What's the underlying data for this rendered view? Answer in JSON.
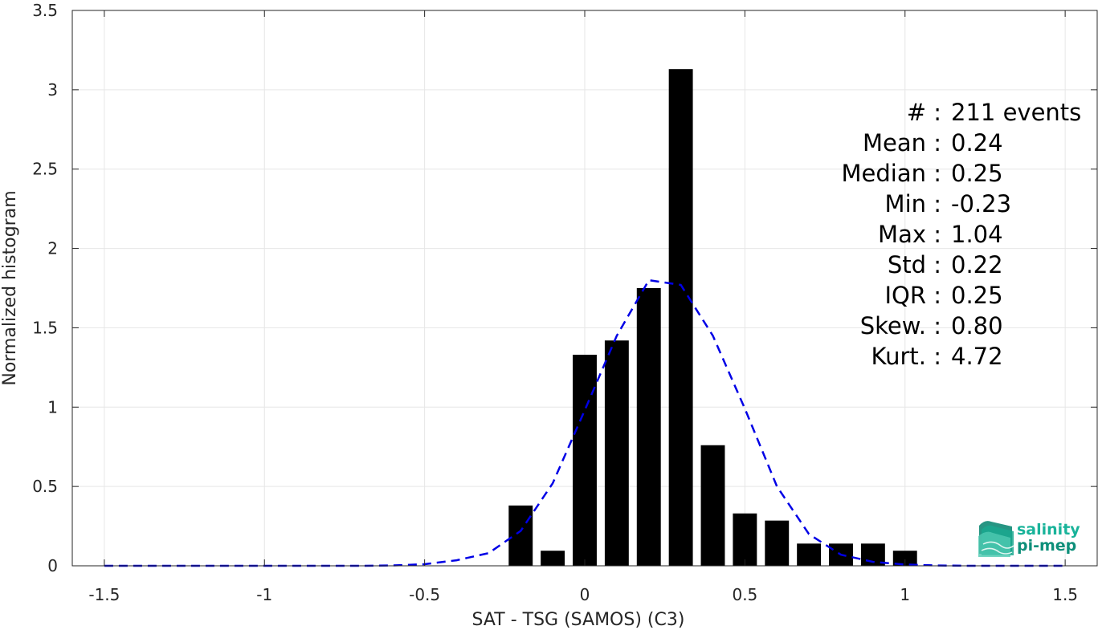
{
  "chart_data": {
    "type": "bar",
    "xlabel": "SAT - TSG (SAMOS) (C3)",
    "ylabel": "Normalized histogram",
    "xlim": [
      -1.6,
      1.6
    ],
    "ylim": [
      0,
      3.5
    ],
    "xticks": [
      -1.5,
      -1,
      -0.5,
      0,
      0.5,
      1,
      1.5
    ],
    "xtick_labels": [
      "-1.5",
      "-1",
      "-0.5",
      "0",
      "0.5",
      "1",
      "1.5"
    ],
    "yticks": [
      0,
      0.5,
      1,
      1.5,
      2,
      2.5,
      3,
      3.5
    ],
    "ytick_labels": [
      "0",
      "0.5",
      "1",
      "1.5",
      "2",
      "2.5",
      "3",
      "3.5"
    ],
    "grid": true,
    "bars": {
      "bin_width": 0.1,
      "bar_width": 0.075,
      "x": [
        -0.2,
        -0.1,
        0.0,
        0.1,
        0.2,
        0.3,
        0.4,
        0.5,
        0.6,
        0.7,
        0.8,
        0.9,
        1.0
      ],
      "values": [
        0.38,
        0.095,
        1.33,
        1.42,
        1.75,
        3.13,
        0.76,
        0.33,
        0.285,
        0.14,
        0.14,
        0.14,
        0.095
      ],
      "color": "#000000"
    },
    "fit_curve": {
      "style": "dashed",
      "color": "#0000e6",
      "x": [
        -1.5,
        -1.4,
        -1.3,
        -1.2,
        -1.1,
        -1.0,
        -0.9,
        -0.8,
        -0.7,
        -0.6,
        -0.5,
        -0.4,
        -0.3,
        -0.2,
        -0.1,
        0.0,
        0.1,
        0.2,
        0.3,
        0.4,
        0.5,
        0.6,
        0.7,
        0.8,
        0.9,
        1.0,
        1.1,
        1.2,
        1.3,
        1.4,
        1.5
      ],
      "y": [
        0,
        0,
        0,
        0,
        0,
        0,
        0,
        0,
        0,
        0.002,
        0.01,
        0.035,
        0.08,
        0.22,
        0.52,
        0.98,
        1.45,
        1.8,
        1.77,
        1.45,
        0.99,
        0.5,
        0.2,
        0.07,
        0.025,
        0.008,
        0.002,
        0,
        0,
        0,
        0
      ]
    },
    "stats": [
      {
        "label": "#  :",
        "value": "211 events"
      },
      {
        "label": "Mean :",
        "value": "0.24"
      },
      {
        "label": "Median :",
        "value": "0.25"
      },
      {
        "label": "Min :",
        "value": "-0.23"
      },
      {
        "label": "Max :",
        "value": "1.04"
      },
      {
        "label": "Std :",
        "value": "0.22"
      },
      {
        "label": "IQR :",
        "value": "0.25"
      },
      {
        "label": "Skew. :",
        "value": "0.80"
      },
      {
        "label": "Kurt. :",
        "value": "4.72"
      }
    ]
  },
  "logo": {
    "line1": "salinity",
    "line2": "pi-mep",
    "color1": "#19b39a",
    "color2": "#0e8f7a"
  }
}
